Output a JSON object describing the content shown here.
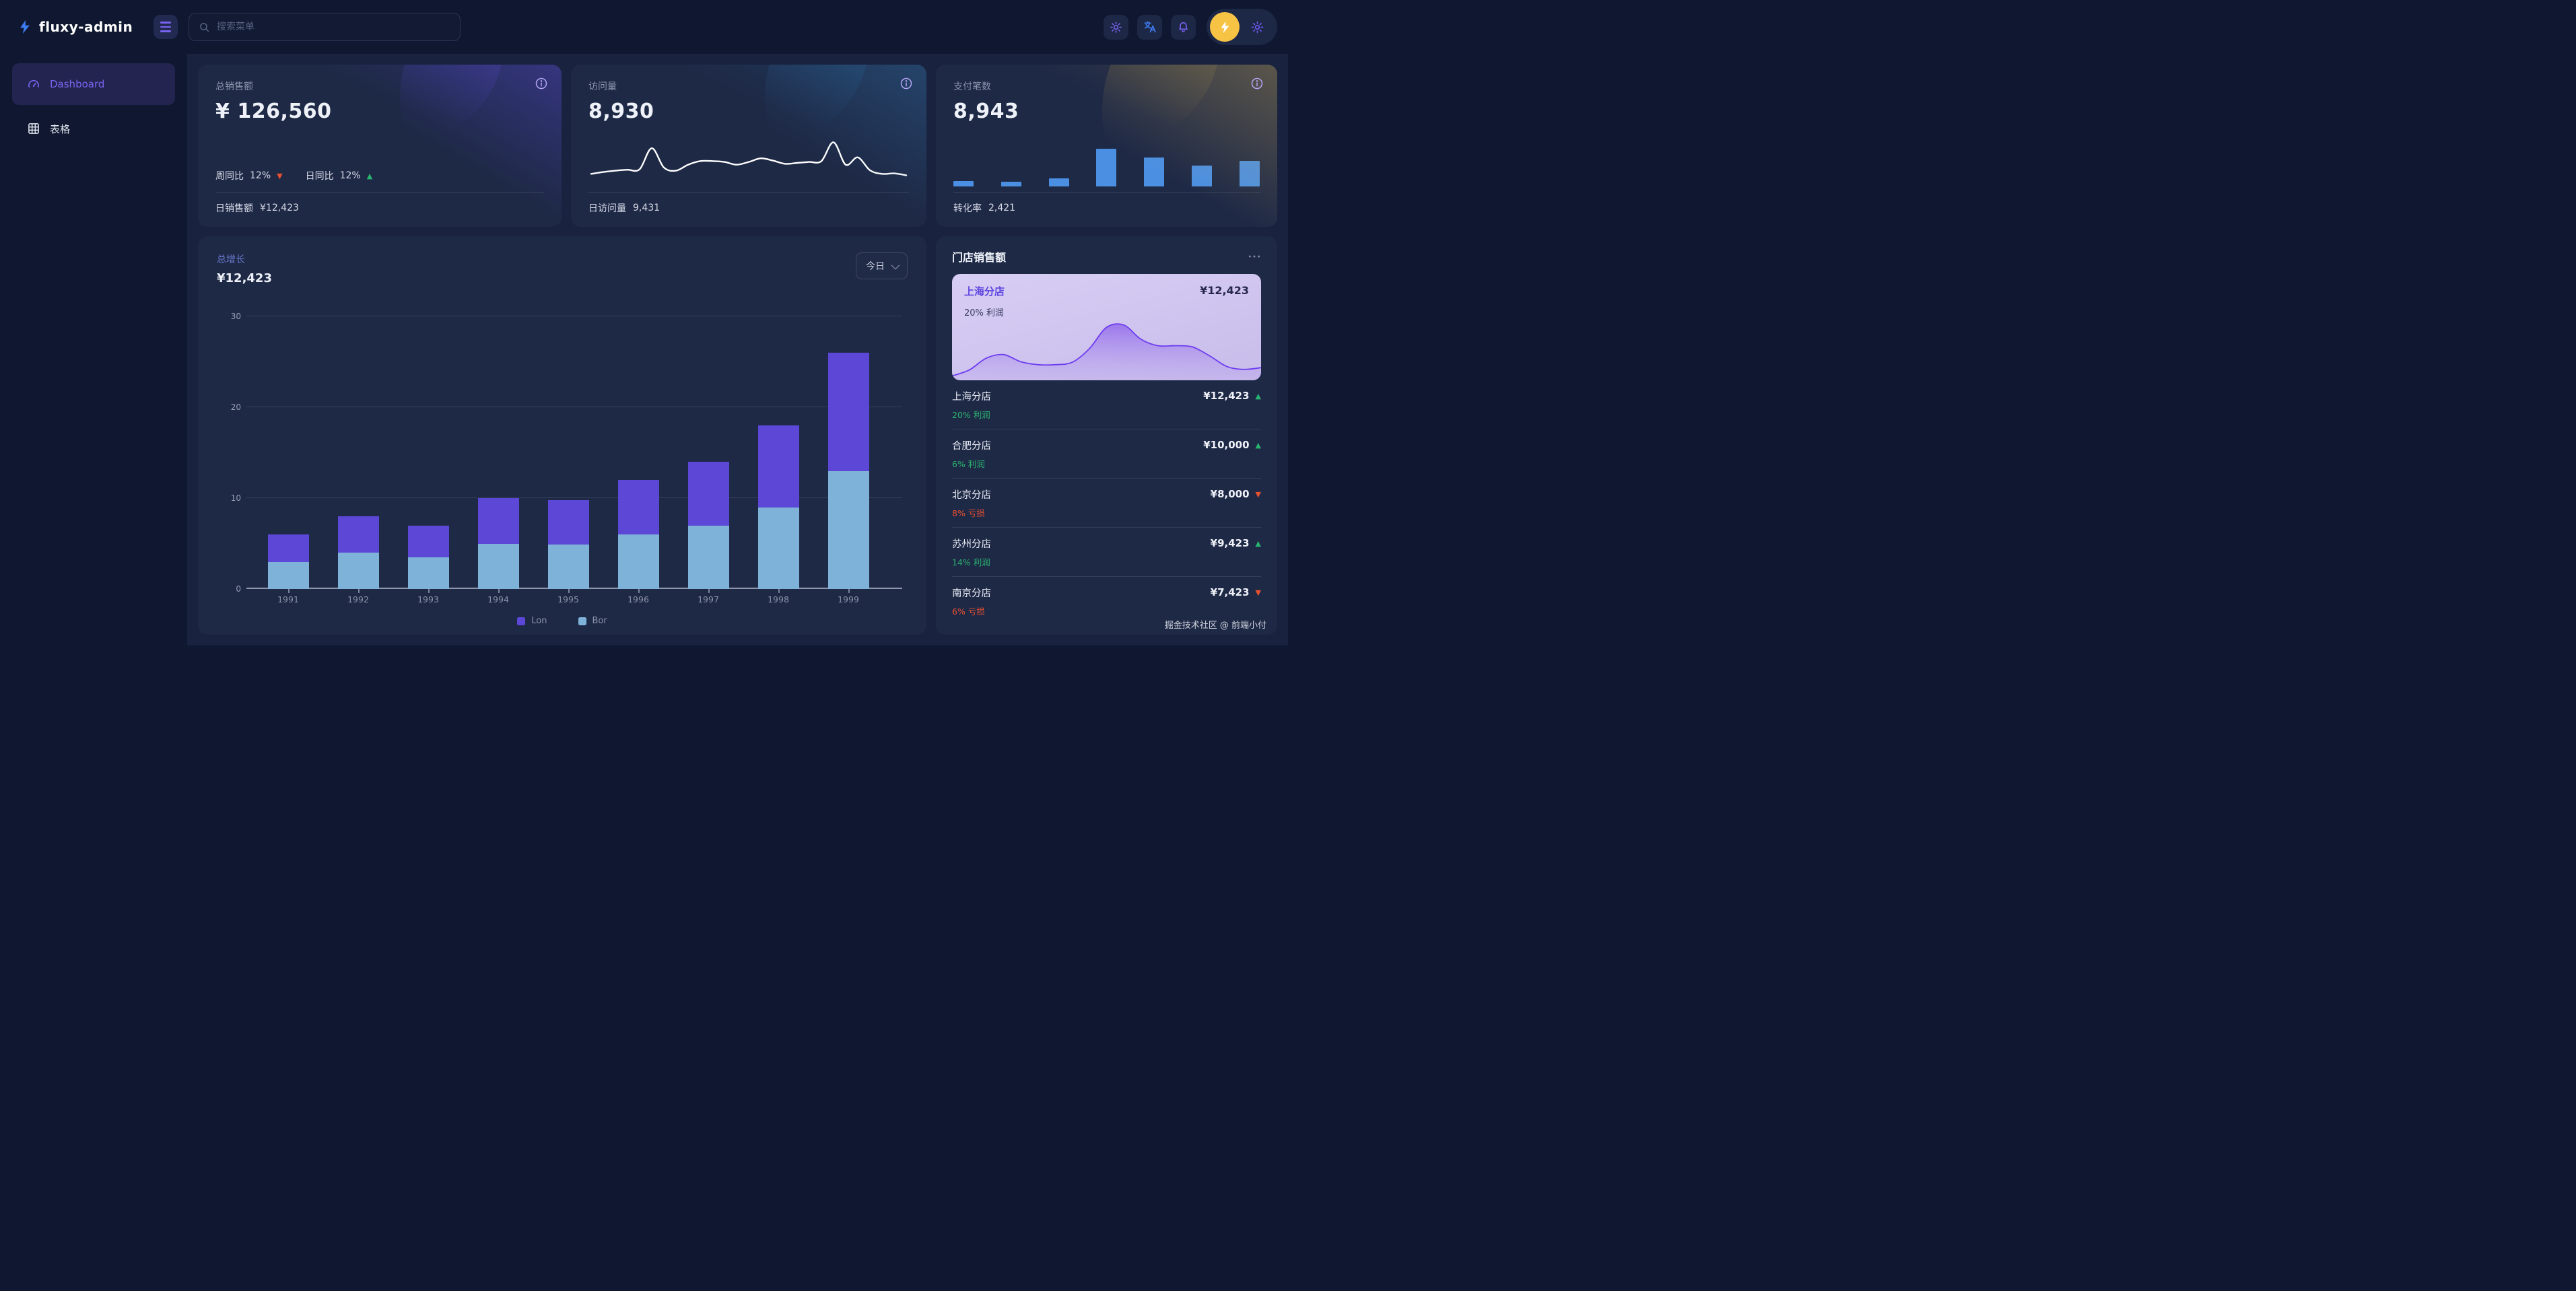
{
  "brand": {
    "name": "fluxy-admin",
    "logo_icon": "lightning-bolt-icon"
  },
  "header": {
    "search_placeholder": "搜索菜单",
    "icons": [
      "menu-icon",
      "search-icon",
      "theme-sun-icon",
      "translate-icon",
      "bell-icon",
      "lightning-avatar-icon",
      "gear-icon"
    ]
  },
  "sidebar": {
    "items": [
      {
        "label": "Dashboard",
        "icon": "gauge-icon",
        "active": true
      },
      {
        "label": "表格",
        "icon": "table-icon",
        "active": false
      }
    ]
  },
  "stat_cards": [
    {
      "title": "总销售额",
      "value": "¥ 126,560",
      "trends": [
        {
          "label": "周同比",
          "value": "12%",
          "dir": "down"
        },
        {
          "label": "日同比",
          "value": "12%",
          "dir": "up"
        }
      ],
      "footer_label": "日销售额",
      "footer_value": "¥12,423",
      "theme": "purple"
    },
    {
      "title": "访问量",
      "value": "8,930",
      "footer_label": "日访问量",
      "footer_value": "9,431",
      "theme": "blue"
    },
    {
      "title": "支付笔数",
      "value": "8,943",
      "footer_label": "转化率",
      "footer_value": "2,421",
      "theme": "gold"
    }
  ],
  "growth": {
    "title": "总增长",
    "value": "¥12,423",
    "range_label": "今日"
  },
  "chart_data": [
    {
      "type": "bar",
      "stacked": true,
      "title": "总增长",
      "categories": [
        "1991",
        "1992",
        "1993",
        "1994",
        "1995",
        "1996",
        "1997",
        "1998",
        "1999"
      ],
      "series": [
        {
          "name": "Lon",
          "color": "#5d47d6",
          "values": [
            3,
            4,
            3.5,
            5,
            4.9,
            6,
            7,
            9,
            13
          ]
        },
        {
          "name": "Bor",
          "color": "#7fb2d9",
          "values": [
            3,
            4,
            3.5,
            5,
            4.9,
            6,
            7,
            9,
            13
          ]
        }
      ],
      "stack_from_bottom": [
        "Bor",
        "Lon"
      ],
      "ylim": [
        0,
        30
      ],
      "yticks": [
        0,
        10,
        20,
        30
      ],
      "grid": true,
      "legend_position": "bottom"
    },
    {
      "type": "line",
      "title": "访问量 sparkline",
      "style": "smooth white line, no axes",
      "color": "#ffffff",
      "values_relative": [
        26,
        30,
        33,
        35,
        36,
        82,
        40,
        33,
        46,
        54,
        54,
        52,
        46,
        52,
        60,
        55,
        48,
        50,
        52,
        54,
        95,
        46,
        62,
        34,
        26,
        27,
        23
      ]
    },
    {
      "type": "bar",
      "title": "支付笔数 mini bars",
      "color": "#4a8fe2",
      "values_relative": [
        14,
        12,
        21,
        100,
        76,
        55,
        68
      ]
    },
    {
      "type": "area",
      "title": "上海分店 trend",
      "style": "purple smooth area, no axes",
      "color": "#6d3cf0",
      "values_relative": [
        4,
        14,
        34,
        40,
        28,
        23,
        23,
        27,
        50,
        86,
        90,
        66,
        55,
        55,
        53,
        38,
        20,
        15,
        18
      ]
    }
  ],
  "store_sales": {
    "title": "门店销售额",
    "highlight": {
      "name": "上海分店",
      "value": "¥12,423",
      "sub": "20% 利润"
    },
    "items": [
      {
        "name": "上海分店",
        "value": "¥12,423",
        "dir": "up",
        "sub": "20% 利润",
        "sub_type": "profit"
      },
      {
        "name": "合肥分店",
        "value": "¥10,000",
        "dir": "up",
        "sub": "6% 利润",
        "sub_type": "profit"
      },
      {
        "name": "北京分店",
        "value": "¥8,000",
        "dir": "down",
        "sub": "8% 亏损",
        "sub_type": "loss"
      },
      {
        "name": "苏州分店",
        "value": "¥9,423",
        "dir": "up",
        "sub": "14% 利润",
        "sub_type": "profit"
      },
      {
        "name": "南京分店",
        "value": "¥7,423",
        "dir": "down",
        "sub": "6% 亏损",
        "sub_type": "loss"
      }
    ]
  },
  "watermark": "掘金技术社区 @ 前端小付",
  "colors": {
    "page_bg": "#0f1830",
    "main_bg": "#19223f",
    "card_bg": "#1e2946",
    "accent_purple": "#7a63f1",
    "accent_blue": "#3f7ef5",
    "bar_purple": "#5d47d6",
    "bar_blue": "#7fb2d9",
    "mini_bar_blue": "#4a8fe2",
    "up_green": "#2ab56f",
    "down_red": "#e8502f",
    "avatar_yellow": "#f6c344",
    "highlight_card_bg": "#cfc5ed",
    "highlight_line": "#6d3cf0"
  }
}
